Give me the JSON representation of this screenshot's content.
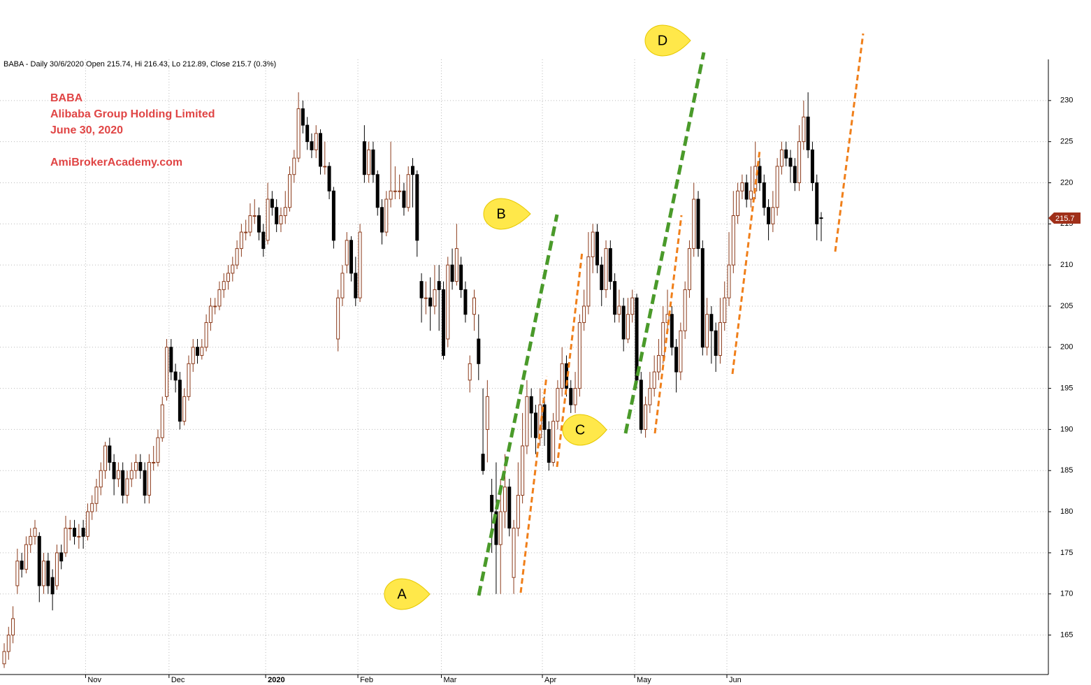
{
  "chart_data": {
    "type": "candlestick",
    "header": "BABA - Daily 30/6/2020 Open 215.74, Hi 216.43, Lo 212.89, Close 215.7 (0.3%)",
    "annotations": [
      "BABA",
      "Alibaba Group Holding Limited",
      "June 30, 2020",
      "AmiBrokerAcademy.com"
    ],
    "callouts": [
      "A",
      "B",
      "C",
      "D"
    ],
    "up_color": "#8b3a1a",
    "down_color": "#000000",
    "ylim": [
      160.2,
      235
    ],
    "yticks": [
      165,
      170,
      175,
      180,
      185,
      190,
      195,
      200,
      205,
      210,
      215,
      220,
      225,
      230
    ],
    "grid": true,
    "categories": [
      null,
      null,
      null,
      null,
      null,
      null,
      null,
      null,
      null,
      null,
      null,
      null,
      null,
      null,
      null,
      null,
      null,
      null,
      null,
      "Nov",
      null,
      null,
      null,
      null,
      null,
      null,
      null,
      null,
      null,
      null,
      null,
      null,
      null,
      null,
      null,
      null,
      null,
      null,
      "Dec",
      null,
      null,
      null,
      null,
      null,
      null,
      null,
      null,
      null,
      null,
      null,
      null,
      null,
      null,
      null,
      null,
      null,
      null,
      null,
      null,
      null,
      "2020",
      null,
      null,
      null,
      null,
      null,
      null,
      null,
      null,
      null,
      null,
      null,
      null,
      null,
      null,
      null,
      null,
      null,
      null,
      null,
      null,
      "Feb",
      null,
      null,
      null,
      null,
      null,
      null,
      null,
      null,
      null,
      null,
      null,
      null,
      null,
      null,
      null,
      null,
      null,
      null,
      "Mar",
      null,
      null,
      null,
      null,
      null,
      null,
      null,
      null,
      null,
      null,
      null,
      null,
      null,
      null,
      null,
      null,
      null,
      null,
      null,
      null,
      null,
      null,
      "Apr",
      null,
      null,
      null,
      null,
      null,
      null,
      null,
      null,
      null,
      null,
      null,
      null,
      null,
      null,
      null,
      null,
      null,
      null,
      null,
      null,
      "May",
      null,
      null,
      null,
      null,
      null,
      null,
      null,
      null,
      null,
      null,
      null,
      null,
      null,
      null,
      null,
      null,
      null,
      null,
      null,
      null,
      "Jun",
      null,
      null,
      null,
      null,
      null,
      null,
      null,
      null,
      null,
      null,
      null,
      null,
      null,
      null,
      null,
      null,
      null,
      null,
      null,
      null,
      null
    ],
    "ohlc": [
      [
        161.5,
        164,
        161,
        163
      ],
      [
        163,
        166,
        162,
        165
      ],
      [
        165,
        168.5,
        164,
        167
      ],
      [
        171,
        175.5,
        170,
        174
      ],
      [
        174,
        175,
        172,
        173
      ],
      [
        173,
        177,
        172.5,
        176
      ],
      [
        176,
        178,
        175,
        177
      ],
      [
        177,
        179,
        176,
        178
      ],
      [
        177,
        177.5,
        169,
        171
      ],
      [
        171,
        175,
        170,
        174
      ],
      [
        174,
        175,
        170,
        171
      ],
      [
        172,
        173,
        168,
        170
      ],
      [
        171,
        176,
        170.5,
        175
      ],
      [
        175,
        176,
        173,
        174
      ],
      [
        175,
        179.5,
        174.5,
        178
      ],
      [
        178,
        179,
        176.5,
        178
      ],
      [
        178,
        179,
        176,
        177
      ],
      [
        177,
        178.5,
        175.5,
        177
      ],
      [
        178,
        179,
        175.5,
        177
      ],
      [
        177,
        181,
        176.5,
        180
      ],
      [
        180,
        182,
        179,
        181
      ],
      [
        181,
        184,
        180,
        183
      ],
      [
        183,
        186,
        182,
        185
      ],
      [
        185,
        188.5,
        184,
        188
      ],
      [
        188,
        189,
        185,
        186
      ],
      [
        186,
        187,
        182,
        184
      ],
      [
        184,
        186,
        183,
        185
      ],
      [
        185,
        186,
        181,
        182
      ],
      [
        182,
        185,
        181,
        184
      ],
      [
        184,
        186,
        183,
        185
      ],
      [
        185,
        187,
        184,
        186
      ],
      [
        186,
        187,
        184,
        185
      ],
      [
        185,
        186,
        181,
        182
      ],
      [
        182,
        187,
        181,
        186
      ],
      [
        186,
        188,
        185,
        186
      ],
      [
        186,
        190,
        185.5,
        189
      ],
      [
        189,
        194,
        188.5,
        193
      ],
      [
        194,
        201,
        193.5,
        200
      ],
      [
        200,
        201,
        196,
        197
      ],
      [
        197,
        198,
        194.5,
        196
      ],
      [
        196,
        197,
        190,
        191
      ],
      [
        191,
        195,
        190.5,
        194
      ],
      [
        194,
        199,
        193.5,
        198
      ],
      [
        198,
        201,
        197,
        200
      ],
      [
        200,
        201,
        198,
        199
      ],
      [
        199,
        201,
        198.5,
        200
      ],
      [
        200,
        204,
        199.5,
        203
      ],
      [
        203,
        206,
        202,
        205
      ],
      [
        205,
        206,
        204,
        205
      ],
      [
        205,
        208,
        204.5,
        207
      ],
      [
        207,
        209,
        206,
        208
      ],
      [
        208,
        210,
        207,
        209
      ],
      [
        209,
        211,
        208,
        210
      ],
      [
        210,
        213,
        209.5,
        212
      ],
      [
        212,
        215,
        211,
        214
      ],
      [
        214,
        215.5,
        213,
        214
      ],
      [
        214,
        217.5,
        213.5,
        216
      ],
      [
        216,
        218,
        215,
        216
      ],
      [
        216,
        217,
        213,
        214
      ],
      [
        214,
        215,
        211,
        212
      ],
      [
        213,
        220,
        212.5,
        218
      ],
      [
        218,
        219,
        216,
        217
      ],
      [
        217,
        218,
        214,
        215
      ],
      [
        215,
        217,
        214,
        216
      ],
      [
        216,
        219,
        215,
        217
      ],
      [
        217,
        222,
        216.5,
        221
      ],
      [
        221,
        224,
        220,
        223
      ],
      [
        223,
        231,
        222.5,
        229
      ],
      [
        229,
        230,
        226,
        227
      ],
      [
        227,
        228,
        224,
        225
      ],
      [
        225,
        226,
        223,
        224
      ],
      [
        224,
        227,
        223,
        226
      ],
      [
        226,
        226.5,
        221,
        222
      ],
      [
        222,
        225,
        221,
        222
      ],
      [
        222,
        222.5,
        218,
        219
      ],
      [
        219,
        219.5,
        212,
        213
      ],
      [
        201,
        207,
        199.5,
        206
      ],
      [
        206,
        210,
        205,
        209
      ],
      [
        210,
        214,
        209,
        213
      ],
      [
        213,
        213.5,
        208,
        209
      ],
      [
        209,
        211,
        205,
        206
      ],
      [
        206,
        215,
        205.5,
        214
      ],
      [
        225,
        227,
        220,
        221
      ],
      [
        221,
        225,
        220,
        224
      ],
      [
        224,
        225,
        220,
        221
      ],
      [
        221,
        221.5,
        216,
        217
      ],
      [
        217,
        218,
        212.5,
        214
      ],
      [
        214,
        219,
        213.5,
        218
      ],
      [
        218,
        225,
        217,
        219
      ],
      [
        219,
        222,
        218,
        219
      ],
      [
        219,
        221,
        218,
        219
      ],
      [
        219,
        220,
        216,
        217
      ],
      [
        217,
        222,
        216.5,
        221
      ],
      [
        222,
        223,
        217,
        221
      ],
      [
        221,
        221.5,
        211,
        213
      ],
      [
        208,
        209,
        203,
        206
      ],
      [
        206,
        208,
        204,
        206
      ],
      [
        206,
        208.5,
        202,
        205
      ],
      [
        205,
        210,
        204,
        207
      ],
      [
        208,
        210,
        202,
        207
      ],
      [
        207,
        208,
        198.5,
        199
      ],
      [
        201,
        211,
        200,
        210
      ],
      [
        210,
        212,
        207,
        208
      ],
      [
        208,
        215,
        207.5,
        212
      ],
      [
        210,
        211,
        206,
        207
      ],
      [
        207,
        208,
        203,
        204
      ],
      [
        196,
        199,
        194.5,
        198
      ],
      [
        204,
        207,
        202,
        206
      ],
      [
        201,
        204,
        196,
        198
      ],
      [
        187,
        195,
        184.5,
        185
      ],
      [
        190,
        196,
        186,
        194
      ],
      [
        182,
        184,
        175,
        180
      ],
      [
        180,
        186,
        170,
        176
      ],
      [
        176,
        184,
        170,
        180
      ],
      [
        180,
        187,
        178,
        183
      ],
      [
        183,
        184,
        177,
        178
      ],
      [
        172,
        179,
        170,
        178
      ],
      [
        178,
        186,
        177,
        182
      ],
      [
        182,
        192,
        181,
        188
      ],
      [
        188,
        196,
        187,
        194
      ],
      [
        194,
        195,
        189,
        192
      ],
      [
        192,
        193,
        187,
        189
      ],
      [
        189,
        195,
        188,
        193
      ],
      [
        193,
        194,
        188,
        190
      ],
      [
        190,
        191,
        185,
        186
      ],
      [
        186,
        192,
        185.5,
        191
      ],
      [
        191,
        196,
        190,
        195
      ],
      [
        195,
        200,
        194,
        198
      ],
      [
        198,
        199,
        194,
        195
      ],
      [
        195,
        196,
        192,
        193
      ],
      [
        193,
        197,
        192,
        195
      ],
      [
        195,
        204,
        194,
        203
      ],
      [
        203,
        207,
        202,
        205
      ],
      [
        205,
        214,
        204,
        211
      ],
      [
        211,
        215,
        209,
        214
      ],
      [
        214,
        215,
        209,
        210
      ],
      [
        210,
        211,
        205,
        207
      ],
      [
        207,
        213,
        206,
        212
      ],
      [
        212,
        213,
        207,
        208
      ],
      [
        208,
        209,
        203,
        204
      ],
      [
        204,
        207,
        203,
        205
      ],
      [
        205,
        206,
        199.5,
        201
      ],
      [
        201,
        206,
        200.5,
        204
      ],
      [
        204,
        207,
        203,
        206
      ],
      [
        206,
        206.5,
        195,
        196
      ],
      [
        196,
        197,
        189.5,
        190
      ],
      [
        190,
        194,
        189,
        193
      ],
      [
        193,
        197,
        192,
        195
      ],
      [
        195,
        199,
        194,
        197
      ],
      [
        197,
        201,
        196,
        199
      ],
      [
        199,
        205,
        198,
        203
      ],
      [
        203,
        207,
        202,
        204
      ],
      [
        204,
        205,
        199,
        200
      ],
      [
        200,
        201,
        194.5,
        197
      ],
      [
        197,
        203,
        196,
        202
      ],
      [
        202,
        208,
        201,
        207
      ],
      [
        207,
        213,
        206,
        212
      ],
      [
        212,
        220,
        211,
        218
      ],
      [
        218,
        219,
        211,
        212
      ],
      [
        212,
        213,
        199,
        200
      ],
      [
        200,
        206,
        199,
        204
      ],
      [
        204,
        205,
        198,
        202
      ],
      [
        202,
        203,
        197,
        199
      ],
      [
        199,
        206,
        198,
        203
      ],
      [
        203,
        208,
        202,
        206
      ],
      [
        206,
        214,
        205,
        210
      ],
      [
        210,
        219,
        209,
        216
      ],
      [
        216,
        220,
        215,
        219
      ],
      [
        219,
        221,
        218,
        220
      ],
      [
        220,
        221,
        217,
        218
      ],
      [
        218,
        222,
        217,
        219
      ],
      [
        219,
        225,
        218,
        222
      ],
      [
        222,
        223,
        219,
        220
      ],
      [
        220,
        221,
        216,
        217
      ],
      [
        217,
        218,
        213,
        215
      ],
      [
        215,
        219,
        214,
        217
      ],
      [
        217,
        223,
        216,
        222
      ],
      [
        222,
        225,
        221,
        224
      ],
      [
        224,
        225,
        222,
        223
      ],
      [
        223,
        224,
        220,
        222
      ],
      [
        222,
        223,
        219,
        220
      ],
      [
        220,
        227,
        219,
        225
      ],
      [
        225,
        230,
        224,
        228
      ],
      [
        228,
        231,
        223,
        224
      ],
      [
        224,
        225,
        219,
        220
      ],
      [
        220,
        221,
        213,
        215
      ],
      [
        215.74,
        216.43,
        212.89,
        215.7
      ]
    ]
  }
}
